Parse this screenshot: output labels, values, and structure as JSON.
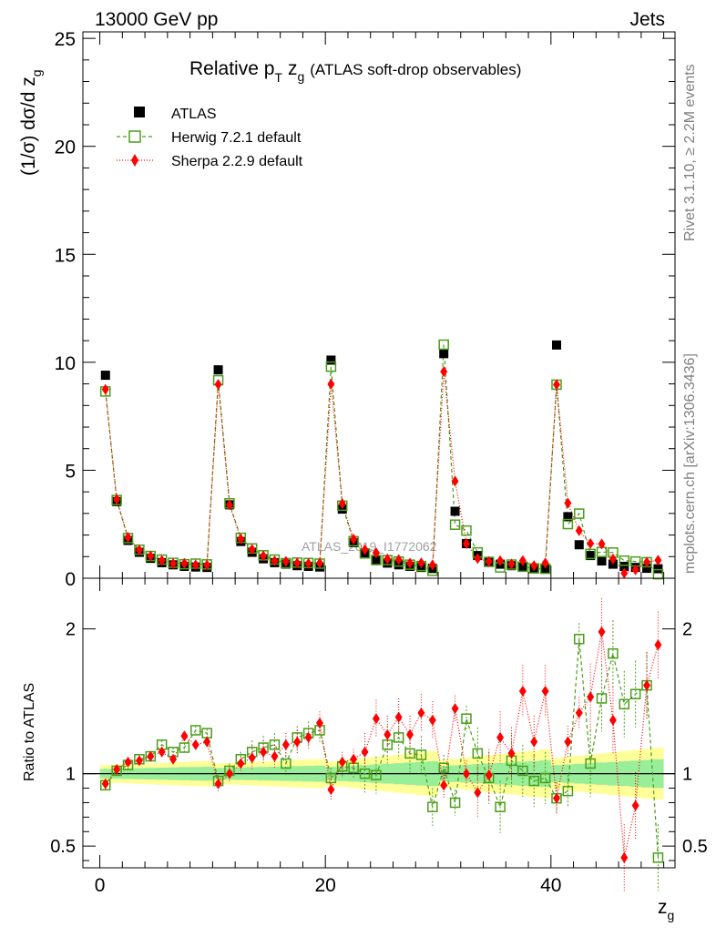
{
  "header": {
    "left": "13000 GeV pp",
    "right": "Jets"
  },
  "side_text": {
    "top": "Rivet 3.1.10, ≥ 2.2M events",
    "bottom": "mcplots.cern.ch [arXiv:1306.3436]"
  },
  "title": {
    "main": "Relative p",
    "sub_t": "T",
    "zg": "z",
    "sub_g": "g",
    "rest": "(ATLAS soft-drop observables)"
  },
  "watermark": "ATLAS_2019_I1772062",
  "legend": [
    "ATLAS",
    "Herwig 7.2.1 default",
    "Sherpa 2.2.9 default"
  ],
  "chart_data": {
    "type": "scatter",
    "title": "Relative pT zg (ATLAS soft-drop observables)",
    "xlabel": "z_g",
    "ylabel": "(1/σ) dσ/d z_g",
    "ratio_ylabel": "Ratio to ATLAS",
    "xlim": [
      -1.5,
      51
    ],
    "ylim_main": [
      0,
      25.3
    ],
    "ylim_ratio": [
      0.35,
      2.35
    ],
    "x_ticks": [
      0,
      20,
      40
    ],
    "x_tick_labels": [
      "0",
      "20",
      "40"
    ],
    "y_ticks_main": [
      0,
      5,
      10,
      15,
      20,
      25
    ],
    "y_tick_labels_main": [
      "0",
      "5",
      "10",
      "15",
      "20",
      "25"
    ],
    "y_ticks_ratio": [
      0.5,
      1,
      2
    ],
    "y_tick_labels_ratio": [
      "0.5",
      "1",
      "2"
    ],
    "x": [
      0.5,
      1.5,
      2.5,
      3.5,
      4.5,
      5.5,
      6.5,
      7.5,
      8.5,
      9.5,
      10.5,
      11.5,
      12.5,
      13.5,
      14.5,
      15.5,
      16.5,
      17.5,
      18.5,
      19.5,
      20.5,
      21.5,
      22.5,
      23.5,
      24.5,
      25.5,
      26.5,
      27.5,
      28.5,
      29.5,
      30.5,
      31.5,
      32.5,
      33.5,
      34.5,
      35.5,
      36.5,
      37.5,
      38.5,
      39.5,
      40.5,
      41.5,
      42.5,
      43.5,
      44.5,
      45.5,
      46.5,
      47.5,
      48.5,
      49.5
    ],
    "series": [
      {
        "name": "ATLAS",
        "color": "#000000",
        "marker": "square",
        "values": [
          9.4,
          3.55,
          1.75,
          1.2,
          0.92,
          0.72,
          0.62,
          0.55,
          0.52,
          0.5,
          9.65,
          3.4,
          1.7,
          1.2,
          0.9,
          0.72,
          0.65,
          0.58,
          0.55,
          0.52,
          10.1,
          3.2,
          1.65,
          1.15,
          0.85,
          0.7,
          0.62,
          0.55,
          0.5,
          0.45,
          10.4,
          3.1,
          1.6,
          1.05,
          0.78,
          0.65,
          0.58,
          0.52,
          0.48,
          0.45,
          10.8,
          2.85,
          1.55,
          1.05,
          0.8,
          0.65,
          0.55,
          0.5,
          0.46,
          0.44
        ]
      },
      {
        "name": "Herwig 7.2.1 default",
        "color": "#4a9e1a",
        "marker": "open-square",
        "ratios": [
          0.92,
          1.02,
          1.06,
          1.1,
          1.12,
          1.2,
          1.15,
          1.18,
          1.3,
          1.28,
          0.95,
          1.02,
          1.1,
          1.15,
          1.18,
          1.2,
          1.07,
          1.25,
          1.28,
          1.3,
          0.97,
          1.05,
          1.04,
          1.0,
          0.99,
          1.2,
          1.25,
          1.14,
          1.13,
          0.77,
          1.04,
          0.8,
          1.38,
          1.14,
          0.97,
          0.77,
          1.09,
          1.02,
          0.95,
          0.97,
          0.83,
          0.88,
          1.93,
          1.07,
          1.52,
          1.83,
          1.48,
          1.55,
          1.61,
          0.42
        ]
      },
      {
        "name": "Sherpa 2.2.9 default",
        "color": "#ff0000",
        "marker": "diamond",
        "ratios": [
          0.93,
          1.03,
          1.08,
          1.09,
          1.12,
          1.15,
          1.1,
          1.26,
          1.2,
          1.22,
          0.93,
          1.0,
          1.07,
          1.11,
          1.15,
          1.12,
          1.2,
          1.22,
          1.25,
          1.35,
          0.89,
          1.08,
          1.1,
          1.15,
          1.38,
          1.27,
          1.39,
          1.27,
          1.42,
          1.37,
          0.92,
          1.45,
          1.0,
          0.87,
          0.99,
          1.25,
          1.14,
          1.57,
          1.22,
          1.57,
          0.83,
          1.22,
          1.42,
          1.53,
          1.98,
          1.37,
          0.42,
          0.78,
          1.61,
          1.89
        ]
      }
    ]
  }
}
